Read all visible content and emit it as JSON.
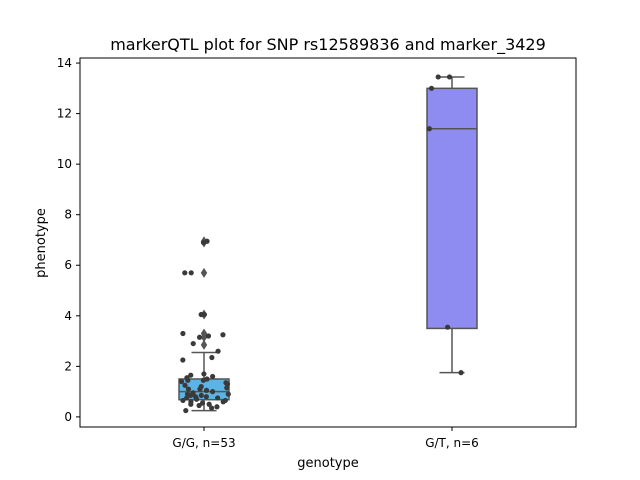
{
  "chart_data": {
    "type": "box",
    "title": "markerQTL plot for SNP rs12589836 and marker_3429",
    "xlabel": "genotype",
    "ylabel": "phenotype",
    "ylim": [
      -0.4,
      14.2
    ],
    "yticks": [
      0,
      2,
      4,
      6,
      8,
      10,
      12,
      14
    ],
    "grid": false,
    "categories": [
      "G/G, n=53",
      "G/T, n=6"
    ],
    "boxes": [
      {
        "category": "G/G, n=53",
        "color": "#5ab4e5",
        "whisker_low": 0.25,
        "q1": 0.68,
        "median": 1.0,
        "q3": 1.5,
        "whisker_high": 2.55,
        "outliers": [
          2.85,
          3.15,
          3.3,
          4.05,
          5.7,
          6.9,
          6.95
        ]
      },
      {
        "category": "G/T, n=6",
        "color": "#8e8cf1",
        "whisker_low": 1.75,
        "q1": 3.5,
        "median": 11.4,
        "q3": 13.0,
        "whisker_high": 13.45,
        "outliers": []
      }
    ],
    "points": [
      {
        "category": "G/G, n=53",
        "values": [
          6.9,
          6.95,
          5.7,
          5.7,
          4.05,
          4.05,
          3.3,
          3.25,
          3.2,
          3.15,
          2.9,
          2.6,
          2.35,
          2.25,
          1.7,
          1.65,
          1.6,
          1.55,
          1.5,
          1.45,
          1.45,
          1.4,
          1.35,
          1.3,
          1.25,
          1.2,
          1.15,
          1.1,
          1.1,
          1.05,
          1.0,
          0.95,
          0.9,
          0.9,
          0.85,
          0.85,
          0.8,
          0.8,
          0.75,
          0.75,
          0.7,
          0.7,
          0.65,
          0.65,
          0.6,
          0.6,
          0.55,
          0.5,
          0.5,
          0.45,
          0.4,
          0.35,
          0.25
        ]
      },
      {
        "category": "G/T, n=6",
        "values": [
          13.45,
          13.45,
          13.0,
          11.4,
          3.55,
          1.75
        ]
      }
    ],
    "box_edge_color": "#555555",
    "point_color": "#3a3a3a",
    "outlier_color": "#555555"
  }
}
